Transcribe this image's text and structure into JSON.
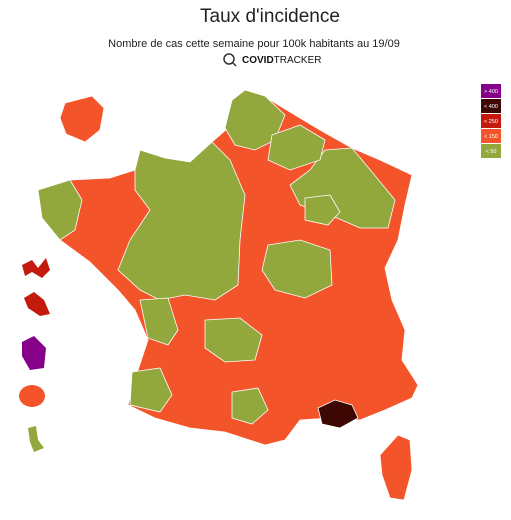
{
  "header": {
    "title": "Taux d'incidence",
    "subtitle": "Nombre de cas cette semaine pour 100k habitants au 19/09",
    "logo_bold": "COVID",
    "logo_light": "TRACKER"
  },
  "legend": [
    {
      "label": "> 400",
      "color": "#86008a"
    },
    {
      "label": "< 400",
      "color": "#3d0704"
    },
    {
      "label": "< 250",
      "color": "#c41a0e"
    },
    {
      "label": "< 150",
      "color": "#f4542a"
    },
    {
      "label": "< 50",
      "color": "#93a83c"
    }
  ]
}
